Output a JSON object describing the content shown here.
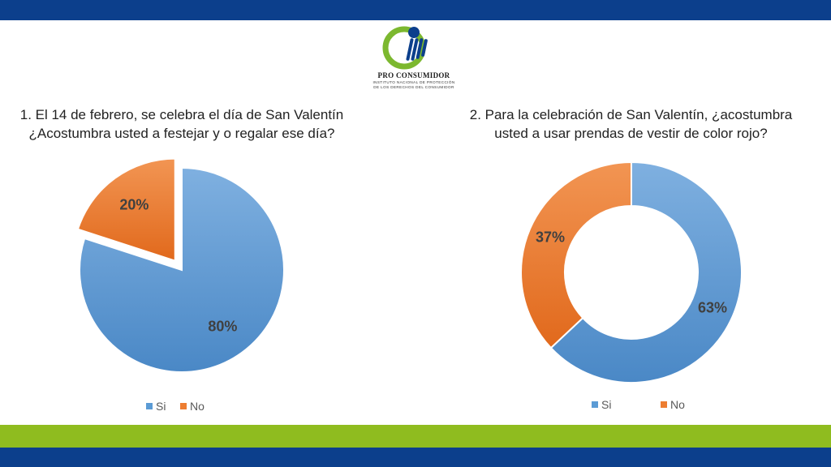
{
  "logo": {
    "name": "PRO CONSUMIDOR",
    "tagline_line1": "INSTITUTO NACIONAL DE PROTECCIÓN",
    "tagline_line2": "DE LOS DERECHOS DEL CONSUMIDOR"
  },
  "colors": {
    "si": "#5b9bd5",
    "no": "#ed7d31",
    "header_bar": "#0c3f8c",
    "accent_band": "#8fbc1f"
  },
  "chart_data": [
    {
      "type": "pie",
      "title_line1": "1. El 14 de febrero, se celebra el día de San Valentín",
      "title_line2": "¿Acostumbra usted a festejar y o regalar ese día?",
      "categories": [
        "Si",
        "No"
      ],
      "values": [
        80,
        20
      ],
      "labels": [
        "80%",
        "20%"
      ],
      "exploded": "No",
      "legend": "bottom"
    },
    {
      "type": "pie",
      "style": "doughnut",
      "title_line1": "2. Para la celebración de San Valentín, ¿acostumbra",
      "title_line2": "usted a usar prendas de vestir de color rojo?",
      "categories": [
        "Si",
        "No"
      ],
      "values": [
        63,
        37
      ],
      "labels": [
        "63%",
        "37%"
      ],
      "legend": "bottom"
    }
  ]
}
